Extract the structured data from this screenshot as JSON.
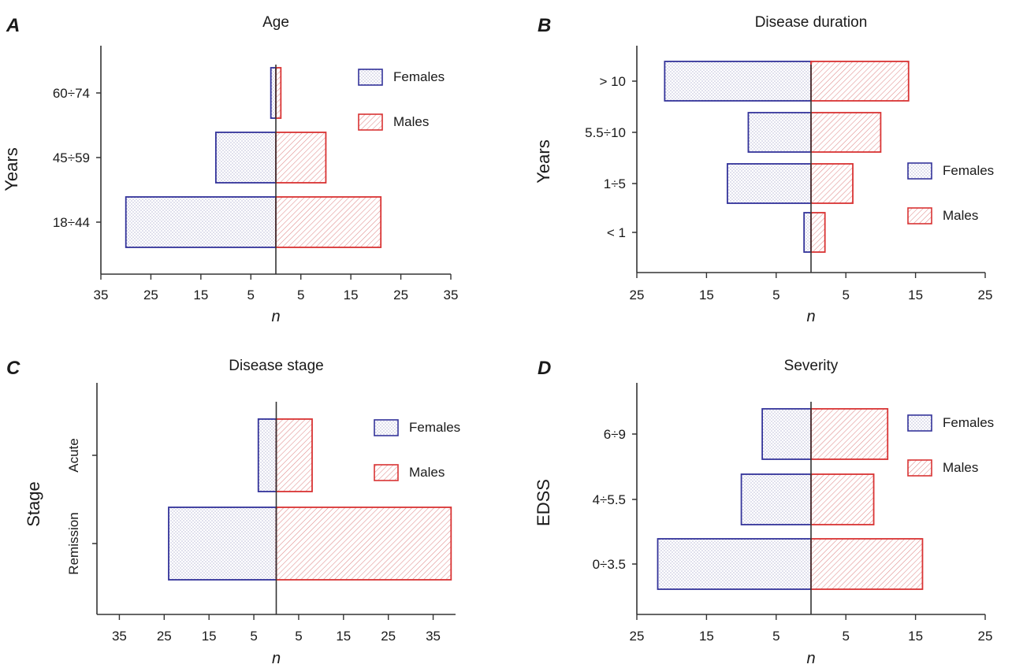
{
  "chart_data": [
    {
      "panel": "A",
      "type": "bar",
      "orientation": "horizontal-butterfly",
      "title": "Age",
      "xlabel": "n",
      "ylabel": "Years",
      "categories": [
        "18÷44",
        "45÷59",
        "60÷74"
      ],
      "series": [
        {
          "name": "Females",
          "values": [
            30,
            12,
            1
          ]
        },
        {
          "name": "Males",
          "values": [
            21,
            10,
            1
          ]
        }
      ],
      "xlim": [
        -35,
        35
      ],
      "xticks": [
        "35",
        "25",
        "15",
        "5",
        "5",
        "15",
        "25",
        "35"
      ],
      "legend": "top-right"
    },
    {
      "panel": "B",
      "type": "bar",
      "orientation": "horizontal-butterfly",
      "title": "Disease duration",
      "xlabel": "n",
      "ylabel": "Years",
      "categories": [
        "< 1",
        "1÷5",
        "5.5÷10",
        "> 10"
      ],
      "series": [
        {
          "name": "Females",
          "values": [
            1,
            12,
            9,
            21
          ]
        },
        {
          "name": "Males",
          "values": [
            2,
            6,
            10,
            14
          ]
        }
      ],
      "xlim": [
        -25,
        25
      ],
      "xticks": [
        "25",
        "15",
        "5",
        "5",
        "15",
        "25"
      ],
      "legend": "right"
    },
    {
      "panel": "C",
      "type": "bar",
      "orientation": "horizontal-butterfly",
      "title": "Disease stage",
      "xlabel": "n",
      "ylabel": "Stage",
      "categories": [
        "Remission",
        "Acute"
      ],
      "series": [
        {
          "name": "Females",
          "values": [
            24,
            4
          ]
        },
        {
          "name": "Males",
          "values": [
            39,
            8
          ]
        }
      ],
      "xlim": [
        -40,
        40
      ],
      "xticks": [
        "35",
        "25",
        "15",
        "5",
        "5",
        "15",
        "25",
        "35"
      ],
      "legend": "top-right"
    },
    {
      "panel": "D",
      "type": "bar",
      "orientation": "horizontal-butterfly",
      "title": "Severity",
      "xlabel": "n",
      "ylabel": "EDSS",
      "categories": [
        "0÷3.5",
        "4÷5.5",
        "6÷9"
      ],
      "series": [
        {
          "name": "Females",
          "values": [
            22,
            10,
            7
          ]
        },
        {
          "name": "Males",
          "values": [
            16,
            9,
            11
          ]
        }
      ],
      "xlim": [
        -25,
        25
      ],
      "xticks": [
        "25",
        "15",
        "5",
        "5",
        "15",
        "25"
      ],
      "legend": "top-right"
    }
  ],
  "colors": {
    "females": "#33339a",
    "males": "#d93333",
    "axis": "#333333"
  }
}
